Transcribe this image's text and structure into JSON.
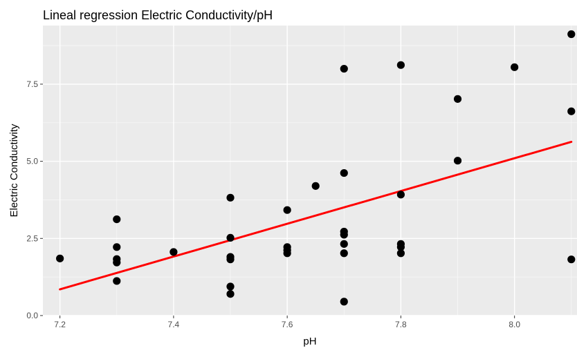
{
  "chart_data": {
    "type": "scatter",
    "title": "Lineal regression Electric Conductivity/pH",
    "xlabel": "pH",
    "ylabel": "Electric Conductivity",
    "xlim": [
      7.17,
      8.11
    ],
    "ylim": [
      0.0,
      9.4
    ],
    "x_ticks": [
      7.2,
      7.4,
      7.6,
      7.8,
      8.0
    ],
    "x_tick_labels": [
      "7.2",
      "7.4",
      "7.6",
      "7.8",
      "8.0"
    ],
    "y_ticks": [
      0.0,
      2.5,
      5.0,
      7.5
    ],
    "y_tick_labels": [
      "0.0",
      "2.5",
      "5.0",
      "7.5"
    ],
    "grid": true,
    "background": "#ebebeb",
    "grid_major_color": "#ffffff",
    "grid_minor_color": "#f7f7f7",
    "point_color": "#000000",
    "line_color": "#ff0000",
    "points": [
      {
        "x": 7.2,
        "y": 1.85
      },
      {
        "x": 7.3,
        "y": 3.12
      },
      {
        "x": 7.3,
        "y": 2.22
      },
      {
        "x": 7.3,
        "y": 1.83
      },
      {
        "x": 7.3,
        "y": 1.72
      },
      {
        "x": 7.3,
        "y": 1.12
      },
      {
        "x": 7.4,
        "y": 2.06
      },
      {
        "x": 7.5,
        "y": 3.82
      },
      {
        "x": 7.5,
        "y": 2.52
      },
      {
        "x": 7.5,
        "y": 1.9
      },
      {
        "x": 7.5,
        "y": 1.82
      },
      {
        "x": 7.5,
        "y": 0.94
      },
      {
        "x": 7.5,
        "y": 0.7
      },
      {
        "x": 7.6,
        "y": 3.42
      },
      {
        "x": 7.6,
        "y": 2.22
      },
      {
        "x": 7.6,
        "y": 2.12
      },
      {
        "x": 7.6,
        "y": 2.02
      },
      {
        "x": 7.65,
        "y": 4.2
      },
      {
        "x": 7.7,
        "y": 8.0
      },
      {
        "x": 7.7,
        "y": 4.62
      },
      {
        "x": 7.7,
        "y": 2.72
      },
      {
        "x": 7.7,
        "y": 2.62
      },
      {
        "x": 7.7,
        "y": 2.32
      },
      {
        "x": 7.7,
        "y": 2.02
      },
      {
        "x": 7.7,
        "y": 0.45
      },
      {
        "x": 7.8,
        "y": 8.12
      },
      {
        "x": 7.8,
        "y": 3.92
      },
      {
        "x": 7.8,
        "y": 2.32
      },
      {
        "x": 7.8,
        "y": 2.22
      },
      {
        "x": 7.8,
        "y": 2.02
      },
      {
        "x": 7.9,
        "y": 7.02
      },
      {
        "x": 7.9,
        "y": 5.02
      },
      {
        "x": 8.0,
        "y": 8.05
      },
      {
        "x": 8.1,
        "y": 9.12
      },
      {
        "x": 8.1,
        "y": 6.62
      },
      {
        "x": 8.1,
        "y": 1.82
      }
    ],
    "regression_line": {
      "x": [
        7.2,
        8.1
      ],
      "y": [
        0.85,
        5.63
      ]
    }
  }
}
